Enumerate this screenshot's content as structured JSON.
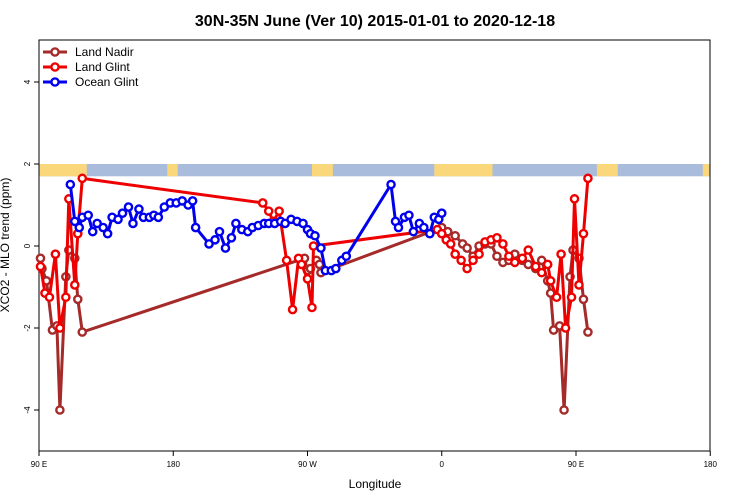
{
  "chart_data": {
    "type": "line",
    "title": "30N-35N June (Ver 10)   2015-01-01 to 2020-12-18",
    "xlabel": "Longitude",
    "ylabel": "XCO2 - MLO trend (ppm)",
    "xlim": [
      90,
      450
    ],
    "ylim": [
      -5,
      5
    ],
    "x_ticks": [
      {
        "value": 90,
        "label": "90 E"
      },
      {
        "value": 180,
        "label": "180"
      },
      {
        "value": 270,
        "label": "90 W"
      },
      {
        "value": 360,
        "label": "0"
      },
      {
        "value": 450,
        "label": "90 E"
      }
    ],
    "x_ticks_extra": [
      {
        "value": 540,
        "label": "180"
      }
    ],
    "y_ticks": [
      {
        "value": -4,
        "label": "-4"
      },
      {
        "value": -2,
        "label": "-2"
      },
      {
        "value": 0,
        "label": "0"
      },
      {
        "value": 2,
        "label": "2"
      },
      {
        "value": 4,
        "label": "4"
      }
    ],
    "grid": false,
    "legend_position": "top-left",
    "land_mask_band": {
      "y_range": [
        1.7,
        2.0
      ],
      "land_color": "#FBD77C",
      "ocean_color": "#A9BCDB",
      "land_segments": [
        [
          90,
          122
        ],
        [
          176,
          183
        ],
        [
          273,
          287
        ],
        [
          355,
          394
        ],
        [
          464,
          478
        ],
        [
          535,
          540
        ]
      ]
    },
    "series": [
      {
        "name": "Land Nadir",
        "color": "#A52A2A",
        "points": [
          [
            91,
            -0.3
          ],
          [
            92,
            -0.55
          ],
          [
            95,
            -0.85
          ],
          [
            99,
            -2.05
          ],
          [
            102,
            -1.95
          ],
          [
            104,
            -4.0
          ],
          [
            108,
            -0.75
          ],
          [
            110,
            -0.1
          ],
          [
            114,
            -0.3
          ],
          [
            116,
            -1.3
          ],
          [
            119,
            -2.1
          ],
          [
            268,
            -0.3
          ],
          [
            270,
            -0.6
          ],
          [
            272,
            -0.55
          ],
          [
            276,
            -0.35
          ],
          [
            278,
            -0.45
          ],
          [
            279,
            -0.65
          ],
          [
            360,
            0.45
          ],
          [
            364,
            0.35
          ],
          [
            369,
            0.25
          ],
          [
            374,
            0.05
          ],
          [
            377,
            -0.05
          ],
          [
            381,
            -0.25
          ],
          [
            385,
            0.0
          ],
          [
            389,
            0.05
          ],
          [
            393,
            0.05
          ],
          [
            397,
            -0.25
          ],
          [
            401,
            -0.4
          ],
          [
            405,
            -0.35
          ],
          [
            409,
            -0.2
          ],
          [
            414,
            -0.35
          ],
          [
            418,
            -0.45
          ],
          [
            423,
            -0.55
          ],
          [
            427,
            -0.35
          ],
          [
            431,
            -0.85
          ],
          [
            433,
            -1.15
          ],
          [
            435,
            -2.05
          ],
          [
            439,
            -1.95
          ],
          [
            442,
            -4.0
          ],
          [
            446,
            -0.75
          ],
          [
            448,
            -0.1
          ],
          [
            452,
            -0.3
          ],
          [
            455,
            -1.3
          ],
          [
            458,
            -2.1
          ]
        ]
      },
      {
        "name": "Land Glint",
        "color": "#EE0000",
        "points": [
          [
            91,
            -0.5
          ],
          [
            94,
            -1.15
          ],
          [
            97,
            -1.25
          ],
          [
            101,
            -0.2
          ],
          [
            104,
            -2.0
          ],
          [
            108,
            -1.25
          ],
          [
            110,
            1.15
          ],
          [
            114,
            -0.95
          ],
          [
            116,
            0.3
          ],
          [
            119,
            1.65
          ],
          [
            240,
            1.05
          ],
          [
            244,
            0.85
          ],
          [
            247,
            0.6
          ],
          [
            251,
            0.85
          ],
          [
            256,
            -0.35
          ],
          [
            260,
            -1.55
          ],
          [
            264,
            -0.3
          ],
          [
            266,
            -0.45
          ],
          [
            270,
            -0.8
          ],
          [
            273,
            -1.5
          ],
          [
            274,
            0.0
          ],
          [
            357,
            0.4
          ],
          [
            360,
            0.3
          ],
          [
            363,
            0.15
          ],
          [
            366,
            0.05
          ],
          [
            369,
            -0.2
          ],
          [
            373,
            -0.35
          ],
          [
            377,
            -0.55
          ],
          [
            381,
            -0.35
          ],
          [
            385,
            -0.2
          ],
          [
            389,
            0.1
          ],
          [
            393,
            0.15
          ],
          [
            397,
            0.2
          ],
          [
            401,
            0.05
          ],
          [
            405,
            -0.25
          ],
          [
            409,
            -0.4
          ],
          [
            414,
            -0.3
          ],
          [
            418,
            -0.1
          ],
          [
            423,
            -0.5
          ],
          [
            427,
            -0.65
          ],
          [
            431,
            -0.45
          ],
          [
            433,
            -0.85
          ],
          [
            437,
            -1.25
          ],
          [
            440,
            -0.2
          ],
          [
            443,
            -2.0
          ],
          [
            447,
            -1.25
          ],
          [
            449,
            1.15
          ],
          [
            452,
            -0.95
          ],
          [
            455,
            0.3
          ],
          [
            458,
            1.65
          ]
        ]
      },
      {
        "name": "Ocean Glint",
        "color": "#0000EE",
        "points": [
          [
            111,
            1.5
          ],
          [
            114,
            0.6
          ],
          [
            117,
            0.45
          ],
          [
            119,
            0.7
          ],
          [
            123,
            0.75
          ],
          [
            126,
            0.35
          ],
          [
            129,
            0.55
          ],
          [
            133,
            0.45
          ],
          [
            136,
            0.3
          ],
          [
            139,
            0.7
          ],
          [
            143,
            0.65
          ],
          [
            146,
            0.8
          ],
          [
            150,
            0.95
          ],
          [
            153,
            0.55
          ],
          [
            157,
            0.9
          ],
          [
            160,
            0.7
          ],
          [
            164,
            0.7
          ],
          [
            167,
            0.75
          ],
          [
            170,
            0.7
          ],
          [
            174,
            0.95
          ],
          [
            178,
            1.05
          ],
          [
            182,
            1.05
          ],
          [
            186,
            1.1
          ],
          [
            190,
            1.0
          ],
          [
            193,
            1.1
          ],
          [
            195,
            0.45
          ],
          [
            204,
            0.05
          ],
          [
            208,
            0.15
          ],
          [
            211,
            0.35
          ],
          [
            215,
            -0.05
          ],
          [
            219,
            0.2
          ],
          [
            222,
            0.55
          ],
          [
            226,
            0.4
          ],
          [
            230,
            0.35
          ],
          [
            233,
            0.45
          ],
          [
            237,
            0.5
          ],
          [
            241,
            0.55
          ],
          [
            244,
            0.55
          ],
          [
            248,
            0.55
          ],
          [
            252,
            0.6
          ],
          [
            255,
            0.55
          ],
          [
            259,
            0.65
          ],
          [
            263,
            0.6
          ],
          [
            267,
            0.55
          ],
          [
            270,
            0.4
          ],
          [
            272,
            0.3
          ],
          [
            275,
            0.25
          ],
          [
            279,
            -0.05
          ],
          [
            282,
            -0.6
          ],
          [
            286,
            -0.6
          ],
          [
            289,
            -0.55
          ],
          [
            293,
            -0.35
          ],
          [
            296,
            -0.25
          ],
          [
            326,
            1.5
          ],
          [
            329,
            0.6
          ],
          [
            331,
            0.45
          ],
          [
            335,
            0.7
          ],
          [
            338,
            0.75
          ],
          [
            341,
            0.35
          ],
          [
            345,
            0.55
          ],
          [
            348,
            0.45
          ],
          [
            352,
            0.3
          ],
          [
            355,
            0.7
          ],
          [
            358,
            0.65
          ],
          [
            360,
            0.8
          ]
        ]
      }
    ]
  }
}
